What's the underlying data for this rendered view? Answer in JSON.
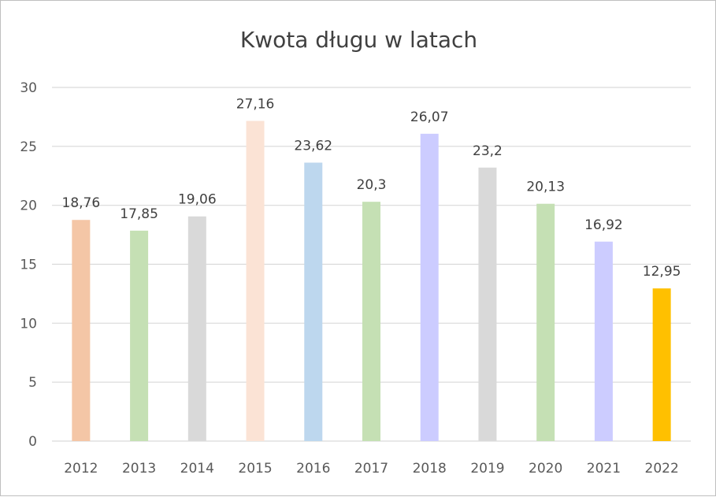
{
  "chart_data": {
    "type": "bar",
    "title": "Kwota długu w latach",
    "xlabel": "",
    "ylabel": "",
    "categories": [
      "2012",
      "2013",
      "2014",
      "2015",
      "2016",
      "2017",
      "2018",
      "2019",
      "2020",
      "2021",
      "2022"
    ],
    "values": [
      18.76,
      17.85,
      19.06,
      27.16,
      23.62,
      20.3,
      26.07,
      23.2,
      20.13,
      16.92,
      12.95
    ],
    "data_labels": [
      "18,76",
      "17,85",
      "19,06",
      "27,16",
      "23,62",
      "20,3",
      "26,07",
      "23,2",
      "20,13",
      "16,92",
      "12,95"
    ],
    "colors": [
      "#f4c6a6",
      "#c5e0b4",
      "#d9d9d9",
      "#fbe3d5",
      "#bdd7ee",
      "#c5e0b4",
      "#ccccff",
      "#d9d9d9",
      "#c5e0b4",
      "#ccccff",
      "#ffc000"
    ],
    "ylim": [
      0,
      30
    ],
    "yticks": [
      "0",
      "5",
      "10",
      "15",
      "20",
      "25",
      "30"
    ],
    "ytick_values": [
      0,
      5,
      10,
      15,
      20,
      25,
      30
    ],
    "grid": true,
    "legend": "none"
  }
}
